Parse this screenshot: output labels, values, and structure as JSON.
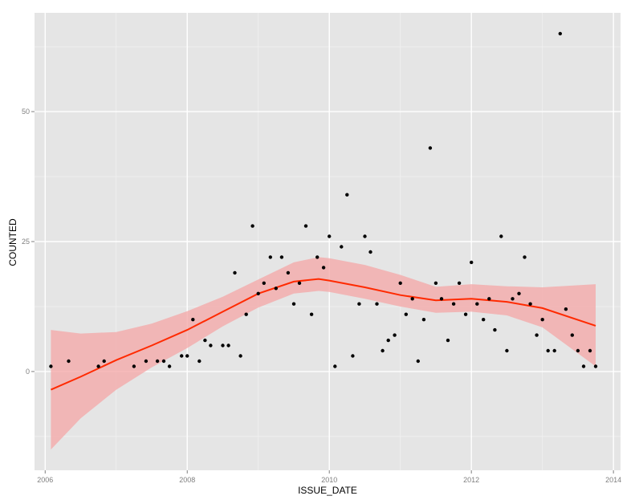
{
  "chart_data": {
    "type": "scatter",
    "xlabel": "ISSUE_DATE",
    "ylabel": "COUNTED",
    "xlim": [
      2005.85,
      2014.1
    ],
    "ylim": [
      -19,
      69
    ],
    "x_ticks": [
      2006,
      2008,
      2010,
      2012,
      2014
    ],
    "x_tick_labels": [
      "2006",
      "2008",
      "2010",
      "2012",
      "2014"
    ],
    "y_ticks": [
      0,
      25,
      50
    ],
    "y_tick_labels": [
      "0",
      "25",
      "50"
    ],
    "grid": true,
    "legend": "none",
    "colors": {
      "panel": "#e5e5e5",
      "grid_major": "#ffffff",
      "grid_minor": "#f2f2f2",
      "points": "#000000",
      "smooth_line": "#ff2a00",
      "confidence_band": "#f4a6a6"
    },
    "series": [
      {
        "values": [
          [
            2006.08,
            1
          ],
          [
            2006.33,
            2
          ],
          [
            2006.75,
            1
          ],
          [
            2006.83,
            2
          ],
          [
            2007.25,
            1
          ],
          [
            2007.42,
            2
          ],
          [
            2007.58,
            2
          ],
          [
            2007.67,
            2
          ],
          [
            2007.75,
            1
          ],
          [
            2007.92,
            3
          ],
          [
            2008.0,
            3
          ],
          [
            2008.08,
            10
          ],
          [
            2008.17,
            2
          ],
          [
            2008.25,
            6
          ],
          [
            2008.33,
            5
          ],
          [
            2008.5,
            5
          ],
          [
            2008.58,
            5
          ],
          [
            2008.67,
            19
          ],
          [
            2008.75,
            3
          ],
          [
            2008.83,
            11
          ],
          [
            2008.92,
            28
          ],
          [
            2009.0,
            15
          ],
          [
            2009.08,
            17
          ],
          [
            2009.17,
            22
          ],
          [
            2009.25,
            16
          ],
          [
            2009.33,
            22
          ],
          [
            2009.42,
            19
          ],
          [
            2009.5,
            13
          ],
          [
            2009.58,
            17
          ],
          [
            2009.67,
            28
          ],
          [
            2009.75,
            11
          ],
          [
            2009.83,
            22
          ],
          [
            2009.92,
            20
          ],
          [
            2010.0,
            26
          ],
          [
            2010.08,
            1
          ],
          [
            2010.17,
            24
          ],
          [
            2010.25,
            34
          ],
          [
            2010.33,
            3
          ],
          [
            2010.42,
            13
          ],
          [
            2010.5,
            26
          ],
          [
            2010.58,
            23
          ],
          [
            2010.67,
            13
          ],
          [
            2010.75,
            4
          ],
          [
            2010.83,
            6
          ],
          [
            2010.92,
            7
          ],
          [
            2011.0,
            17
          ],
          [
            2011.08,
            11
          ],
          [
            2011.17,
            14
          ],
          [
            2011.25,
            2
          ],
          [
            2011.33,
            10
          ],
          [
            2011.42,
            43
          ],
          [
            2011.5,
            17
          ],
          [
            2011.58,
            14
          ],
          [
            2011.67,
            6
          ],
          [
            2011.75,
            13
          ],
          [
            2011.83,
            17
          ],
          [
            2011.92,
            11
          ],
          [
            2012.0,
            21
          ],
          [
            2012.08,
            13
          ],
          [
            2012.17,
            10
          ],
          [
            2012.25,
            14
          ],
          [
            2012.33,
            8
          ],
          [
            2012.42,
            26
          ],
          [
            2012.5,
            4
          ],
          [
            2012.58,
            14
          ],
          [
            2012.67,
            15
          ],
          [
            2012.75,
            22
          ],
          [
            2012.83,
            13
          ],
          [
            2012.92,
            7
          ],
          [
            2013.0,
            10
          ],
          [
            2013.08,
            4
          ],
          [
            2013.17,
            4
          ],
          [
            2013.25,
            65
          ],
          [
            2013.33,
            12
          ],
          [
            2013.42,
            7
          ],
          [
            2013.5,
            4
          ],
          [
            2013.58,
            1
          ],
          [
            2013.67,
            4
          ],
          [
            2013.75,
            1
          ]
        ]
      }
    ],
    "smooth": {
      "x": [
        2006.08,
        2006.5,
        2007.0,
        2007.5,
        2008.0,
        2008.5,
        2009.0,
        2009.5,
        2009.85,
        2010.0,
        2010.5,
        2011.0,
        2011.5,
        2012.0,
        2012.5,
        2013.0,
        2013.75
      ],
      "y": [
        -3.5,
        -1.0,
        2.2,
        5.0,
        8.0,
        11.5,
        15.0,
        17.3,
        17.8,
        17.5,
        16.2,
        14.7,
        13.7,
        14.0,
        13.4,
        12.2,
        8.8
      ],
      "ymin": [
        -15,
        -9,
        -3.5,
        0.8,
        4.5,
        8.7,
        12.3,
        15.0,
        15.5,
        15.3,
        14.0,
        12.5,
        11.3,
        11.5,
        10.8,
        8.5,
        1.0
      ],
      "ymax": [
        8,
        7.3,
        7.6,
        9.2,
        11.6,
        14.4,
        17.7,
        21.0,
        22.0,
        21.8,
        20.5,
        18.6,
        16.3,
        16.8,
        16.4,
        16.2,
        16.8
      ]
    }
  }
}
